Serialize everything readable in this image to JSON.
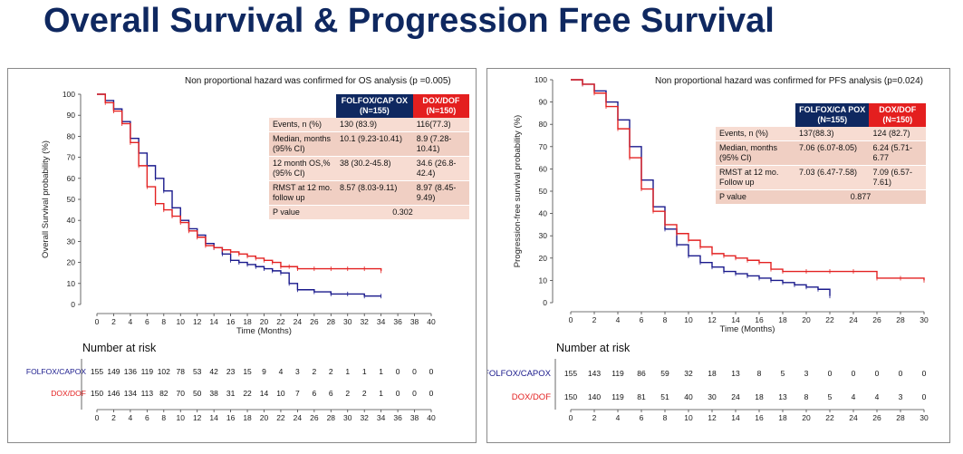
{
  "title": "Overall Survival & Progression Free Survival",
  "colors": {
    "folfox": "#1a1a8c",
    "dox": "#e32222",
    "title": "#0f2860",
    "header_red": "#e41f1f",
    "header_blue": "#0f2860"
  },
  "os_panel": {
    "note": "Non proportional hazard was confirmed for OS analysis (p =0.005)",
    "table": {
      "col1": "FOLFOX/CAP OX (N=155)",
      "col2": "DOX/DOF (N=150)",
      "rows": [
        {
          "label": "Events, n (%)",
          "a": "130 (83.9)",
          "b": "116(77.3)"
        },
        {
          "label": "Median, months (95% CI)",
          "a": "10.1 (9.23-10.41)",
          "b": "8.9 (7.28-10.41)"
        },
        {
          "label": "12 month OS,% (95% CI)",
          "a": "38 (30.2-45.8)",
          "b": "34.6 (26.8-42.4)"
        },
        {
          "label": "RMST at 12 mo. follow up",
          "a": "8.57 (8.03-9.11)",
          "b": "8.97 (8.45-9.49)"
        }
      ],
      "pvalue_label": "P value",
      "pvalue": "0.302"
    },
    "risk": {
      "title": "Number at risk",
      "row1_label": "FOLFOX/CAPOX",
      "row2_label": "DOX/DOF",
      "row1": [
        "155",
        "149",
        "136",
        "119",
        "102",
        "78",
        "53",
        "42",
        "23",
        "15",
        "9",
        "4",
        "3",
        "2",
        "2",
        "1",
        "1",
        "1",
        "0",
        "0",
        "0"
      ],
      "row2": [
        "150",
        "146",
        "134",
        "113",
        "82",
        "70",
        "50",
        "38",
        "31",
        "22",
        "14",
        "10",
        "7",
        "6",
        "6",
        "2",
        "2",
        "1",
        "0",
        "0",
        "0"
      ]
    }
  },
  "pfs_panel": {
    "note": "Non proportional hazard was confirmed for PFS analysis (p=0.024)",
    "table": {
      "col1": "FOLFOX/CA POX (N=155)",
      "col2": "DOX/DOF (N=150)",
      "rows": [
        {
          "label": "Events, n (%)",
          "a": "137(88.3)",
          "b": "124 (82.7)"
        },
        {
          "label": "Median, months (95% CI)",
          "a": "7.06 (6.07-8.05)",
          "b": "6.24 (5.71-6.77"
        },
        {
          "label": "RMST at 12 mo. Follow up",
          "a": "7.03 (6.47-7.58)",
          "b": "7.09 (6.57-7.61)"
        }
      ],
      "pvalue_label": "P value",
      "pvalue": "0.877"
    },
    "risk": {
      "title": "Number at risk",
      "row1_label": "FOLFOX/CAPOX",
      "row2_label": "DOX/DOF",
      "row1": [
        "155",
        "143",
        "119",
        "86",
        "59",
        "32",
        "18",
        "13",
        "8",
        "5",
        "3",
        "0",
        "0",
        "0",
        "0",
        "0"
      ],
      "row2": [
        "150",
        "140",
        "119",
        "81",
        "51",
        "40",
        "30",
        "24",
        "18",
        "13",
        "8",
        "5",
        "4",
        "4",
        "3",
        "0"
      ]
    }
  },
  "chart_data": [
    {
      "type": "line",
      "title": "",
      "xlabel": "Time (Months)",
      "ylabel": "Overall Survival probability (%)",
      "xlim": [
        0,
        40
      ],
      "ylim": [
        0,
        100
      ],
      "xticks": [
        "0",
        "2",
        "4",
        "6",
        "8",
        "10",
        "12",
        "14",
        "16",
        "18",
        "20",
        "22",
        "24",
        "26",
        "28",
        "30",
        "32",
        "34",
        "36",
        "38",
        "40"
      ],
      "yticks": [
        "0",
        "10",
        "20",
        "30",
        "40",
        "50",
        "60",
        "70",
        "80",
        "90",
        "100"
      ],
      "series": [
        {
          "name": "FOLFOX/CAPOX",
          "color": "#1a1a8c",
          "x": [
            0,
            1,
            2,
            3,
            4,
            5,
            6,
            7,
            8,
            9,
            10,
            11,
            12,
            13,
            14,
            15,
            16,
            17,
            18,
            19,
            20,
            21,
            22,
            23,
            24,
            26,
            28,
            30,
            32,
            34
          ],
          "y": [
            100,
            97,
            93,
            87,
            79,
            72,
            66,
            60,
            54,
            46,
            40,
            36,
            33,
            29,
            27,
            24,
            21,
            20,
            19,
            18,
            17,
            16,
            15,
            10,
            7,
            6,
            5,
            5,
            4,
            4
          ]
        },
        {
          "name": "DOX/DOF",
          "color": "#e32222",
          "x": [
            0,
            1,
            2,
            3,
            4,
            5,
            6,
            7,
            8,
            9,
            10,
            11,
            12,
            13,
            14,
            15,
            16,
            17,
            18,
            19,
            20,
            21,
            22,
            23,
            24,
            26,
            28,
            30,
            32,
            34
          ],
          "y": [
            100,
            96,
            92,
            86,
            77,
            66,
            56,
            48,
            45,
            42,
            39,
            35,
            32,
            28,
            27,
            26,
            25,
            24,
            23,
            22,
            21,
            20,
            18,
            18,
            17,
            17,
            17,
            17,
            17,
            16
          ]
        }
      ]
    },
    {
      "type": "line",
      "title": "",
      "xlabel": "Time (Months)",
      "ylabel": "Progression-free survival probability (%)",
      "xlim": [
        0,
        30
      ],
      "ylim": [
        0,
        100
      ],
      "xticks": [
        "0",
        "2",
        "4",
        "6",
        "8",
        "10",
        "12",
        "14",
        "16",
        "18",
        "20",
        "22",
        "24",
        "26",
        "28",
        "30"
      ],
      "yticks": [
        "0",
        "10",
        "20",
        "30",
        "40",
        "50",
        "60",
        "70",
        "80",
        "90",
        "100"
      ],
      "series": [
        {
          "name": "FOLFOX/CAPOX",
          "color": "#1a1a8c",
          "x": [
            0,
            1,
            2,
            3,
            4,
            5,
            6,
            7,
            8,
            9,
            10,
            11,
            12,
            13,
            14,
            15,
            16,
            17,
            18,
            19,
            20,
            21,
            22
          ],
          "y": [
            100,
            98,
            95,
            90,
            82,
            70,
            55,
            43,
            33,
            26,
            21,
            18,
            16,
            14,
            13,
            12,
            11,
            10,
            9,
            8,
            7,
            6,
            3
          ]
        },
        {
          "name": "DOX/DOF",
          "color": "#e32222",
          "x": [
            0,
            1,
            2,
            3,
            4,
            5,
            6,
            7,
            8,
            9,
            10,
            11,
            12,
            13,
            14,
            15,
            16,
            17,
            18,
            20,
            22,
            24,
            26,
            28,
            30
          ],
          "y": [
            100,
            98,
            94,
            88,
            78,
            65,
            51,
            41,
            35,
            31,
            28,
            25,
            22,
            21,
            20,
            19,
            18,
            15,
            14,
            14,
            14,
            14,
            11,
            11,
            10
          ]
        }
      ]
    }
  ]
}
